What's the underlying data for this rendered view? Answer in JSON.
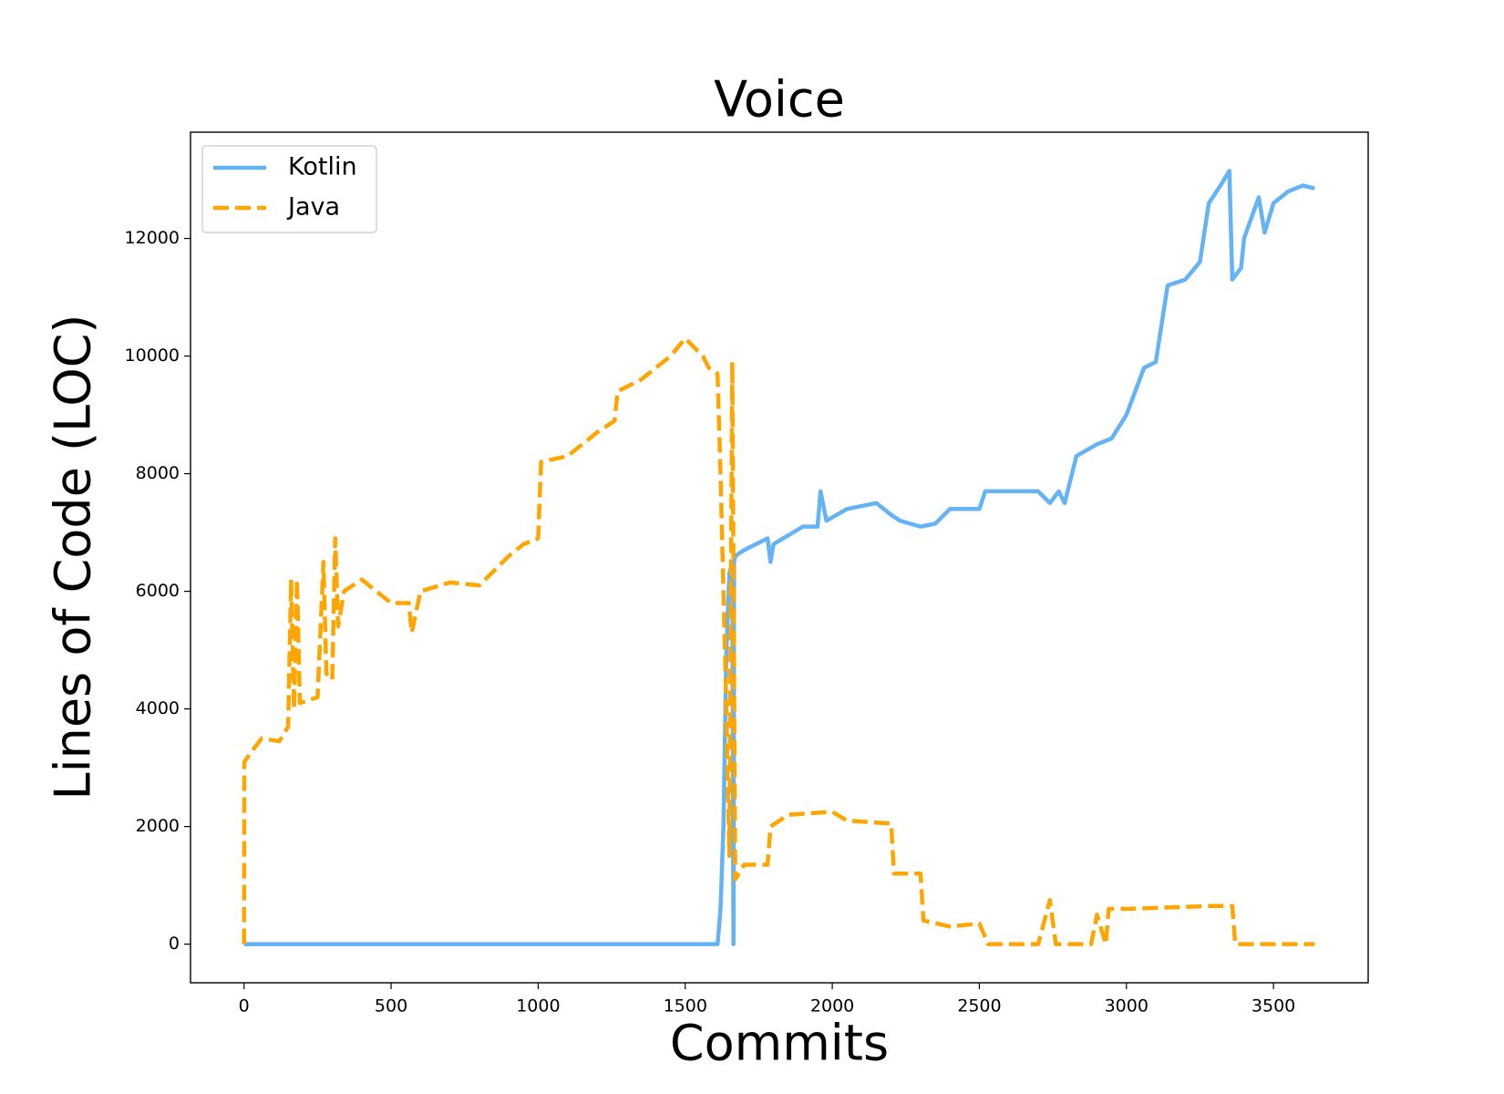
{
  "chart_data": {
    "type": "line",
    "title": "Voice",
    "xlabel": "Commits",
    "ylabel": "Lines of Code (LOC)",
    "xlim": [
      -182,
      3822
    ],
    "ylim": [
      -657,
      13807
    ],
    "xticks": [
      0,
      500,
      1000,
      1500,
      2000,
      2500,
      3000,
      3500
    ],
    "yticks": [
      0,
      2000,
      4000,
      6000,
      8000,
      10000,
      12000
    ],
    "grid": false,
    "legend": "upper left",
    "series": [
      {
        "name": "Kotlin",
        "color": "#63b3f5",
        "linestyle": "solid",
        "x": [
          0,
          1610,
          1620,
          1630,
          1640,
          1650,
          1660,
          1664,
          1666,
          1670,
          1700,
          1780,
          1790,
          1800,
          1900,
          1950,
          1960,
          1980,
          2050,
          2150,
          2200,
          2230,
          2300,
          2350,
          2400,
          2500,
          2520,
          2600,
          2700,
          2740,
          2770,
          2790,
          2830,
          2900,
          2950,
          3000,
          3060,
          3100,
          3140,
          3200,
          3250,
          3280,
          3320,
          3350,
          3360,
          3390,
          3400,
          3450,
          3470,
          3500,
          3550,
          3600,
          3640
        ],
        "values": [
          0,
          0,
          600,
          2000,
          5000,
          6300,
          6500,
          0,
          6500,
          6600,
          6700,
          6900,
          6500,
          6800,
          7100,
          7100,
          7700,
          7200,
          7400,
          7500,
          7300,
          7200,
          7100,
          7150,
          7400,
          7400,
          7700,
          7700,
          7700,
          7500,
          7700,
          7500,
          8300,
          8500,
          8600,
          9000,
          9800,
          9900,
          11200,
          11300,
          11600,
          12600,
          12900,
          13150,
          11300,
          11500,
          12000,
          12700,
          12100,
          12600,
          12800,
          12900,
          12850
        ]
      },
      {
        "name": "Java",
        "color": "#ffa500",
        "linestyle": "dashed",
        "x": [
          0,
          1,
          30,
          60,
          120,
          150,
          160,
          170,
          180,
          190,
          250,
          270,
          280,
          300,
          310,
          320,
          340,
          400,
          500,
          560,
          570,
          600,
          700,
          800,
          900,
          950,
          1000,
          1010,
          1100,
          1200,
          1260,
          1270,
          1350,
          1450,
          1500,
          1560,
          1580,
          1610,
          1620,
          1640,
          1650,
          1660,
          1670,
          1700,
          1780,
          1790,
          1850,
          2000,
          2050,
          2200,
          2210,
          2300,
          2310,
          2400,
          2500,
          2530,
          2700,
          2740,
          2760,
          2880,
          2900,
          2930,
          2940,
          3000,
          3300,
          3360,
          3370,
          3640
        ],
        "values": [
          0,
          3100,
          3300,
          3500,
          3450,
          3700,
          6200,
          4000,
          6200,
          4100,
          4200,
          6500,
          4600,
          4500,
          6900,
          5400,
          6000,
          6200,
          5800,
          5800,
          5300,
          6000,
          6150,
          6100,
          6600,
          6800,
          6900,
          8200,
          8300,
          8700,
          8900,
          9400,
          9600,
          10000,
          10300,
          10000,
          9800,
          9700,
          8000,
          4000,
          1500,
          9900,
          1100,
          1350,
          1350,
          2000,
          2200,
          2250,
          2100,
          2050,
          1200,
          1200,
          400,
          300,
          350,
          0,
          0,
          750,
          0,
          0,
          500,
          0,
          600,
          600,
          650,
          650,
          0,
          0
        ]
      }
    ]
  }
}
